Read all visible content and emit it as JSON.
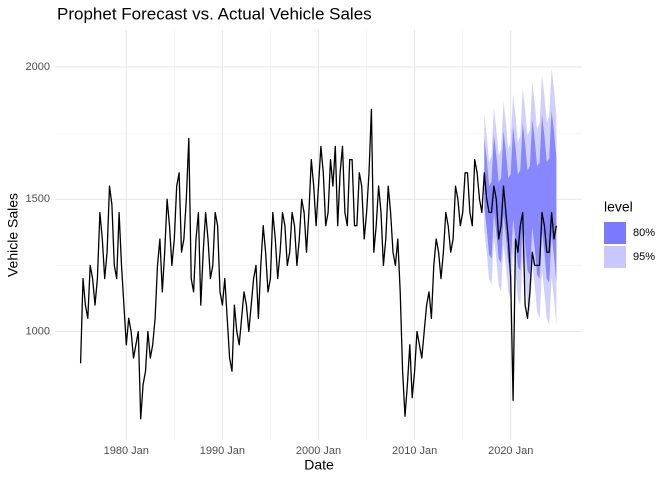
{
  "chart_data": {
    "type": "line",
    "title": "Prophet Forecast vs. Actual Vehicle Sales",
    "x_label": "Date",
    "y_label": "Vehicle Sales",
    "legend_title": "level",
    "grid": true,
    "xlim": [
      "1972-08",
      "2027-06"
    ],
    "xticks": [
      {
        "value": "1980-01",
        "label": "1980 Jan"
      },
      {
        "value": "1990-01",
        "label": "1990 Jan"
      },
      {
        "value": "2000-01",
        "label": "2000 Jan"
      },
      {
        "value": "2010-01",
        "label": "2010 Jan"
      },
      {
        "value": "2020-01",
        "label": "2020 Jan"
      }
    ],
    "ylim": [
      590,
      2140
    ],
    "yticks": [
      1000,
      1500,
      2000
    ],
    "x": [
      "1975-04",
      "1975-07",
      "1975-10",
      "1976-01",
      "1976-04",
      "1976-07",
      "1976-10",
      "1977-01",
      "1977-04",
      "1977-07",
      "1977-10",
      "1978-01",
      "1978-04",
      "1978-07",
      "1978-10",
      "1979-01",
      "1979-04",
      "1979-07",
      "1979-10",
      "1980-01",
      "1980-04",
      "1980-07",
      "1980-10",
      "1981-01",
      "1981-04",
      "1981-07",
      "1981-10",
      "1982-01",
      "1982-04",
      "1982-07",
      "1982-10",
      "1983-01",
      "1983-04",
      "1983-07",
      "1983-10",
      "1984-01",
      "1984-04",
      "1984-07",
      "1984-10",
      "1985-01",
      "1985-04",
      "1985-07",
      "1985-10",
      "1986-01",
      "1986-04",
      "1986-07",
      "1986-10",
      "1987-01",
      "1987-04",
      "1987-07",
      "1987-10",
      "1988-01",
      "1988-04",
      "1988-07",
      "1988-10",
      "1989-01",
      "1989-04",
      "1989-07",
      "1989-10",
      "1990-01",
      "1990-04",
      "1990-07",
      "1990-10",
      "1991-01",
      "1991-04",
      "1991-07",
      "1991-10",
      "1992-01",
      "1992-04",
      "1992-07",
      "1992-10",
      "1993-01",
      "1993-04",
      "1993-07",
      "1993-10",
      "1994-01",
      "1994-04",
      "1994-07",
      "1994-10",
      "1995-01",
      "1995-04",
      "1995-07",
      "1995-10",
      "1996-01",
      "1996-04",
      "1996-07",
      "1996-10",
      "1997-01",
      "1997-04",
      "1997-07",
      "1997-10",
      "1998-01",
      "1998-04",
      "1998-07",
      "1998-10",
      "1999-01",
      "1999-04",
      "1999-07",
      "1999-10",
      "2000-01",
      "2000-04",
      "2000-07",
      "2000-10",
      "2001-01",
      "2001-04",
      "2001-07",
      "2001-10",
      "2002-01",
      "2002-04",
      "2002-07",
      "2002-10",
      "2003-01",
      "2003-04",
      "2003-07",
      "2003-10",
      "2004-01",
      "2004-04",
      "2004-07",
      "2004-10",
      "2005-01",
      "2005-04",
      "2005-07",
      "2005-10",
      "2006-01",
      "2006-04",
      "2006-07",
      "2006-10",
      "2007-01",
      "2007-04",
      "2007-07",
      "2007-10",
      "2008-01",
      "2008-04",
      "2008-07",
      "2008-10",
      "2009-01",
      "2009-04",
      "2009-07",
      "2009-10",
      "2010-01",
      "2010-04",
      "2010-07",
      "2010-10",
      "2011-01",
      "2011-04",
      "2011-07",
      "2011-10",
      "2012-01",
      "2012-04",
      "2012-07",
      "2012-10",
      "2013-01",
      "2013-04",
      "2013-07",
      "2013-10",
      "2014-01",
      "2014-04",
      "2014-07",
      "2014-10",
      "2015-01",
      "2015-04",
      "2015-07",
      "2015-10",
      "2016-01",
      "2016-04",
      "2016-07",
      "2016-10",
      "2017-01",
      "2017-04",
      "2017-07",
      "2017-10",
      "2018-01",
      "2018-04",
      "2018-07",
      "2018-10",
      "2019-01",
      "2019-04",
      "2019-07",
      "2019-10",
      "2020-01",
      "2020-04",
      "2020-07",
      "2020-10",
      "2021-01",
      "2021-04",
      "2021-07",
      "2021-10",
      "2022-01",
      "2022-04",
      "2022-07",
      "2022-10",
      "2023-01",
      "2023-04",
      "2023-07",
      "2023-10",
      "2024-01",
      "2024-04",
      "2024-07",
      "2024-10"
    ],
    "series": [
      {
        "color": "#000000",
        "values": [
          880,
          1200,
          1100,
          1050,
          1250,
          1200,
          1100,
          1200,
          1450,
          1350,
          1200,
          1300,
          1550,
          1480,
          1250,
          1200,
          1450,
          1250,
          1100,
          950,
          1050,
          1000,
          900,
          950,
          1000,
          670,
          800,
          850,
          1000,
          900,
          950,
          1050,
          1250,
          1350,
          1150,
          1300,
          1500,
          1400,
          1250,
          1350,
          1550,
          1600,
          1300,
          1350,
          1500,
          1730,
          1200,
          1150,
          1350,
          1450,
          1100,
          1300,
          1450,
          1350,
          1200,
          1250,
          1450,
          1400,
          1150,
          1100,
          1200,
          1050,
          900,
          850,
          1100,
          1000,
          950,
          1050,
          1150,
          1100,
          1000,
          1100,
          1200,
          1250,
          1050,
          1250,
          1400,
          1300,
          1150,
          1200,
          1450,
          1350,
          1200,
          1300,
          1450,
          1400,
          1250,
          1300,
          1450,
          1400,
          1250,
          1350,
          1500,
          1450,
          1300,
          1450,
          1650,
          1550,
          1400,
          1550,
          1700,
          1600,
          1400,
          1450,
          1650,
          1550,
          1700,
          1400,
          1600,
          1700,
          1450,
          1400,
          1650,
          1650,
          1400,
          1400,
          1600,
          1550,
          1350,
          1450,
          1600,
          1840,
          1300,
          1400,
          1550,
          1450,
          1250,
          1350,
          1550,
          1450,
          1300,
          1250,
          1350,
          1150,
          850,
          680,
          800,
          950,
          750,
          850,
          1000,
          950,
          900,
          1000,
          1100,
          1150,
          1050,
          1250,
          1350,
          1300,
          1200,
          1300,
          1450,
          1400,
          1300,
          1350,
          1550,
          1500,
          1400,
          1450,
          1600,
          1600,
          1450,
          1400,
          1650,
          1600,
          1500,
          1450,
          1600,
          1500,
          1450,
          1450,
          1550,
          1500,
          1350,
          1400,
          1550,
          1450,
          1350,
          1200,
          740,
          1350,
          1300,
          1400,
          1450,
          1100,
          1050,
          1150,
          1300,
          1250,
          1250,
          1250,
          1450,
          1400,
          1300,
          1300,
          1450,
          1350,
          1400
        ]
      }
    ],
    "forecast_x": [
      "2017-04",
      "2017-07",
      "2017-10",
      "2018-01",
      "2018-04",
      "2018-07",
      "2018-10",
      "2019-01",
      "2019-04",
      "2019-07",
      "2019-10",
      "2020-01",
      "2020-04",
      "2020-07",
      "2020-10",
      "2021-01",
      "2021-04",
      "2021-07",
      "2021-10",
      "2022-01",
      "2022-04",
      "2022-07",
      "2022-10",
      "2023-01",
      "2023-04",
      "2023-07",
      "2023-10",
      "2024-01",
      "2024-04",
      "2024-07",
      "2024-10"
    ],
    "bands": [
      {
        "name": "95%",
        "color": "#c8c8ff",
        "lower": [
          1380,
          1300,
          1200,
          1175,
          1355,
          1275,
          1175,
          1150,
          1330,
          1250,
          1150,
          1125,
          1305,
          1225,
          1125,
          1100,
          1280,
          1200,
          1100,
          1075,
          1255,
          1175,
          1075,
          1050,
          1230,
          1150,
          1050,
          1025,
          1205,
          1125,
          1025
        ],
        "upper": [
          1820,
          1740,
          1640,
          1665,
          1845,
          1765,
          1665,
          1690,
          1870,
          1790,
          1690,
          1715,
          1895,
          1815,
          1715,
          1740,
          1920,
          1840,
          1740,
          1765,
          1945,
          1865,
          1765,
          1790,
          1970,
          1890,
          1790,
          1815,
          1995,
          1915,
          1815
        ]
      },
      {
        "name": "80%",
        "color": "#7a7aff",
        "lower": [
          1470,
          1390,
          1290,
          1275,
          1455,
          1375,
          1275,
          1260,
          1440,
          1360,
          1260,
          1245,
          1425,
          1345,
          1245,
          1230,
          1410,
          1330,
          1230,
          1215,
          1395,
          1315,
          1215,
          1200,
          1380,
          1300,
          1200,
          1185,
          1365,
          1285,
          1185
        ],
        "upper": [
          1730,
          1650,
          1550,
          1565,
          1745,
          1665,
          1565,
          1580,
          1760,
          1680,
          1580,
          1595,
          1775,
          1695,
          1595,
          1610,
          1790,
          1710,
          1610,
          1625,
          1805,
          1725,
          1625,
          1640,
          1820,
          1740,
          1640,
          1655,
          1835,
          1755,
          1655
        ]
      }
    ]
  }
}
